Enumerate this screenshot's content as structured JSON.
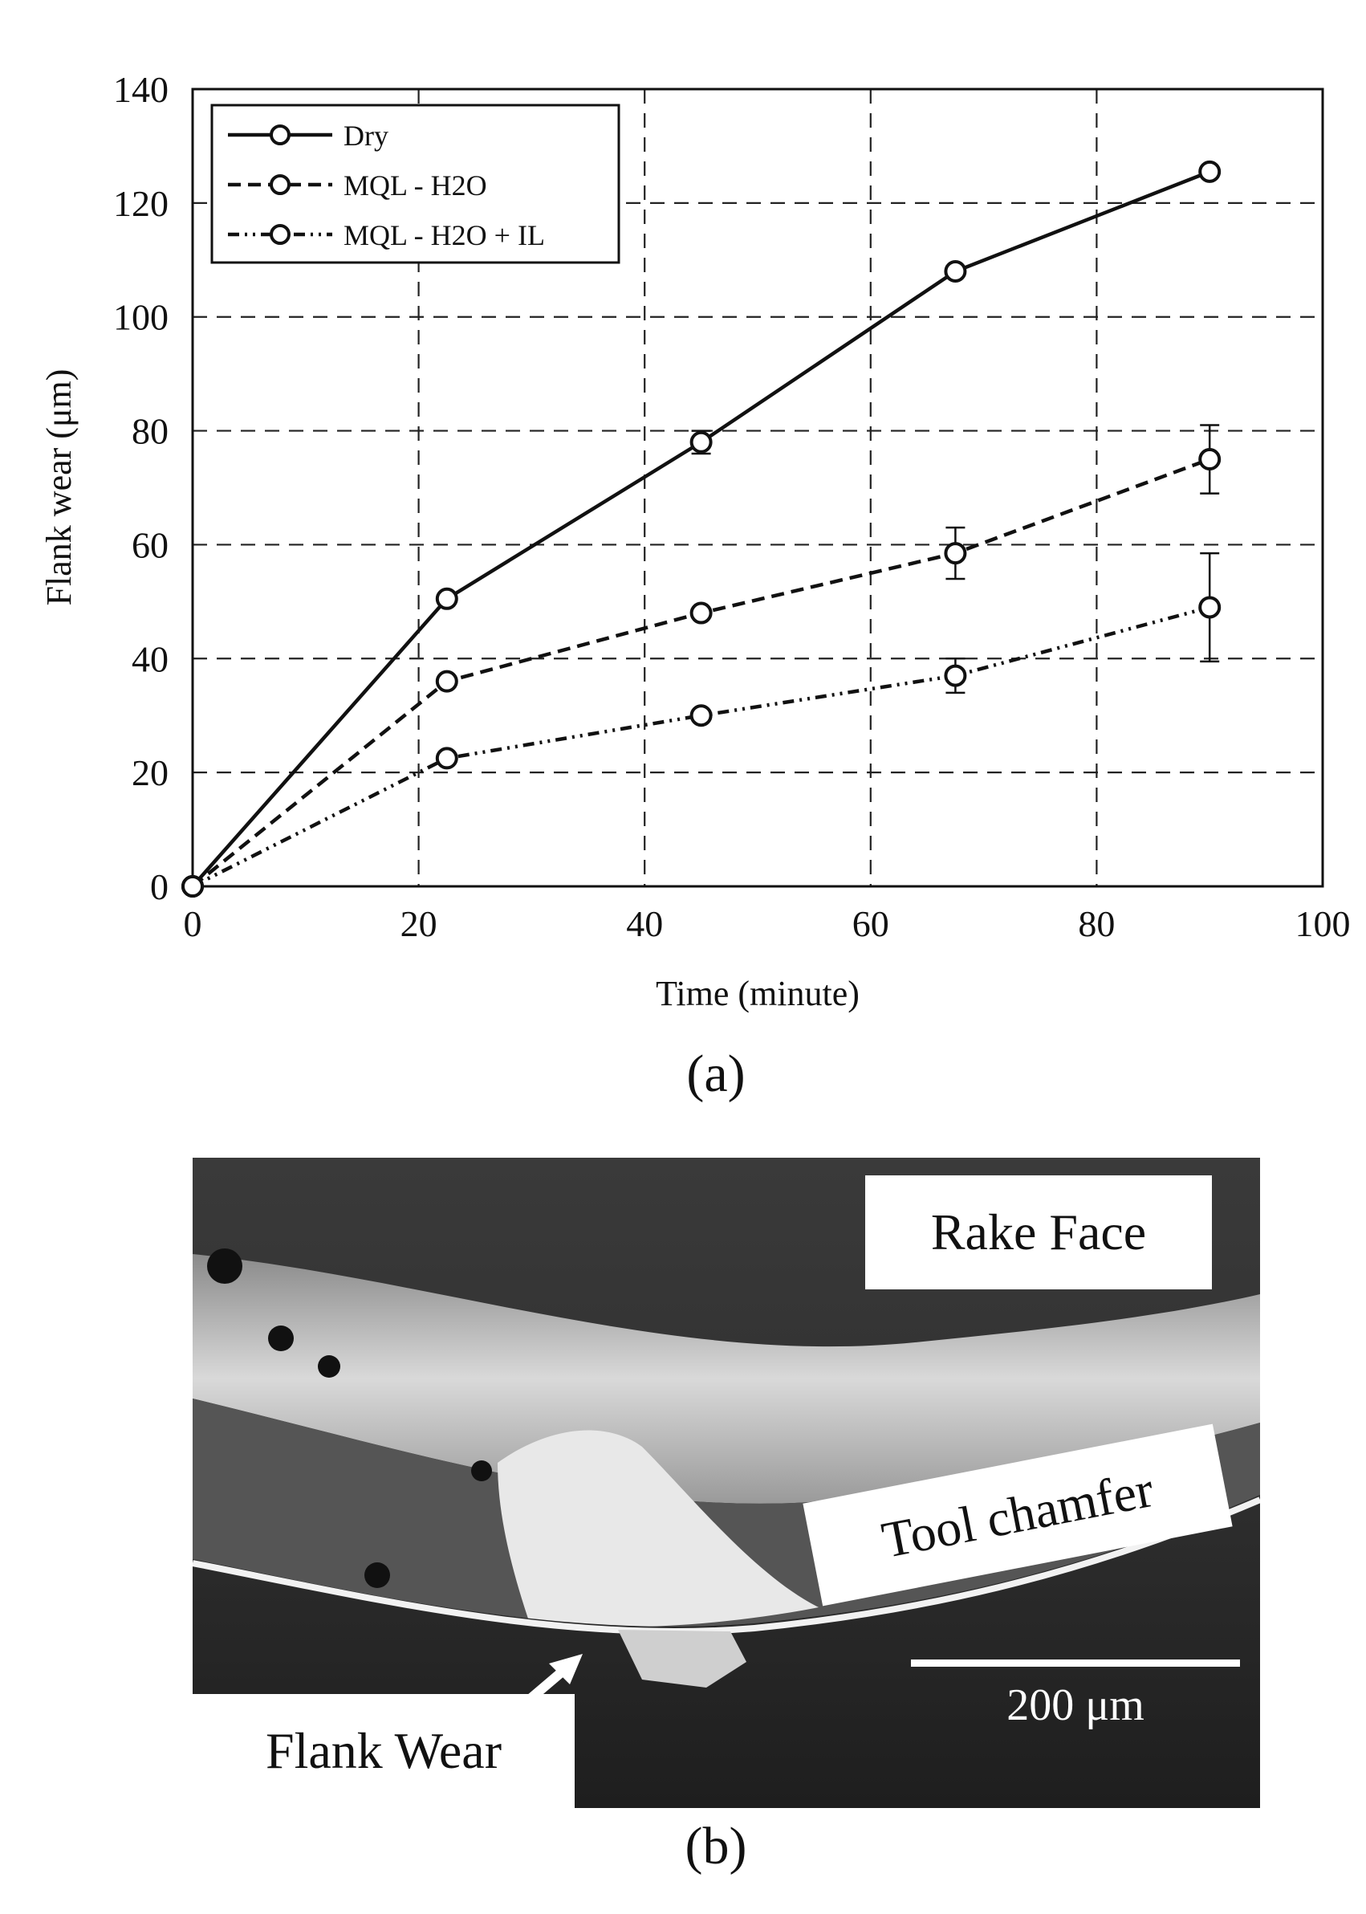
{
  "chart_data": {
    "type": "line",
    "xlabel": "Time (minute)",
    "ylabel": "Flank wear (μm)",
    "xlim": [
      0,
      100
    ],
    "ylim": [
      0,
      140
    ],
    "x_ticks": [
      0,
      20,
      40,
      60,
      80,
      100
    ],
    "y_ticks": [
      0,
      20,
      40,
      60,
      80,
      100,
      120,
      140
    ],
    "grid": true,
    "legend_position": "top-left",
    "x": [
      0,
      22.5,
      45,
      67.5,
      90
    ],
    "series": [
      {
        "name": "Dry",
        "values": [
          0,
          50.5,
          78,
          108,
          125.5
        ],
        "errors": [
          0,
          0,
          2,
          0,
          0
        ],
        "dash": "solid"
      },
      {
        "name": "MQL - H2O",
        "values": [
          0,
          36,
          48,
          58.5,
          75
        ],
        "errors": [
          0,
          0,
          0,
          4.5,
          6
        ],
        "dash": "dashed"
      },
      {
        "name": "MQL - H2O + IL",
        "values": [
          0,
          22.5,
          30,
          37,
          49
        ],
        "errors": [
          0,
          0,
          0,
          3,
          9.5
        ],
        "dash": "dashdotdot"
      }
    ]
  },
  "captions": {
    "a": "(a)",
    "b": "(b)"
  },
  "micrograph": {
    "labels": {
      "rake_face": "Rake Face",
      "tool_chamfer": "Tool chamfer",
      "flank_wear": "Flank Wear"
    },
    "scale_bar": "200 μm"
  }
}
